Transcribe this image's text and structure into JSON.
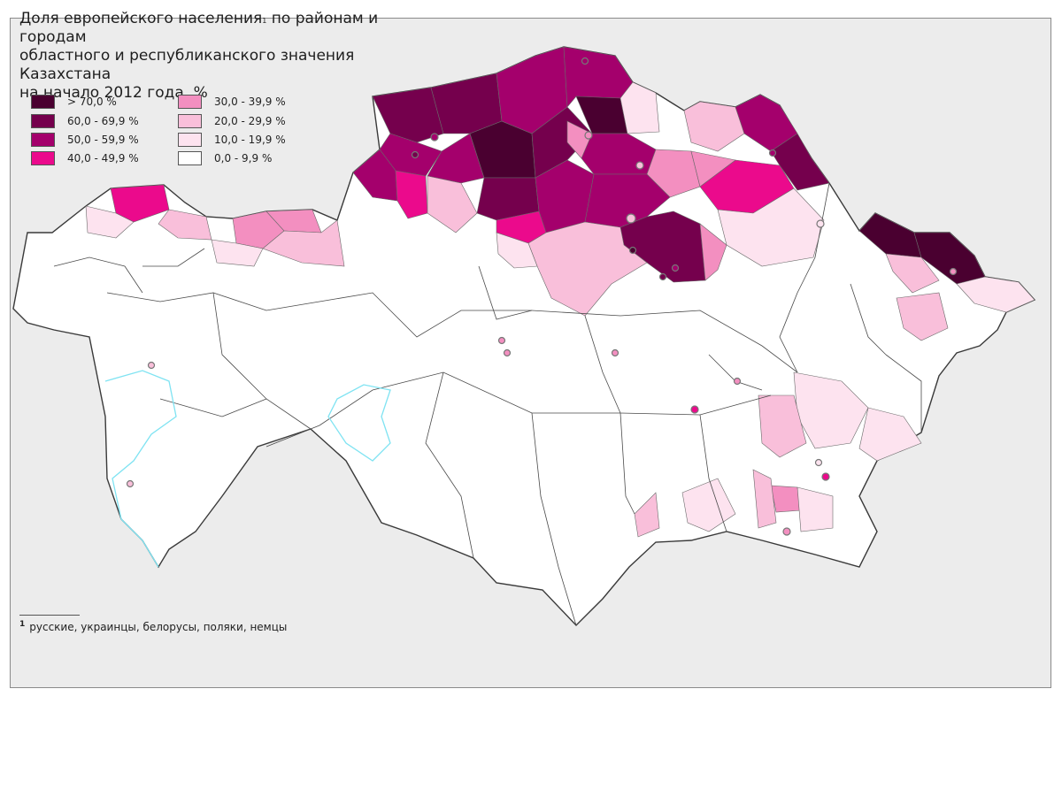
{
  "title": {
    "line1": "Доля европейского населения",
    "note_mark": "1",
    "line1_rest": " по районам и городам",
    "line2": "областного и республиканского значения Казахстана",
    "line3": "на начало 2012 года, %"
  },
  "legend": [
    {
      "label": "> 70,0 %",
      "color": "#4a0030"
    },
    {
      "label": "60,0 - 69,9 %",
      "color": "#75004d"
    },
    {
      "label": "50,0 - 59,9 %",
      "color": "#a4006c"
    },
    {
      "label": "40,0 - 49,9 %",
      "color": "#eb0a8c"
    },
    {
      "label": "30,0 - 39,9 %",
      "color": "#f38fc0"
    },
    {
      "label": "20,0 - 29,9 %",
      "color": "#f9bfda"
    },
    {
      "label": "10,0 - 19,9 %",
      "color": "#fde3ef"
    },
    {
      "label": "0,0 - 9,9 %",
      "color": "#ffffff"
    }
  ],
  "footnote": {
    "mark": "1",
    "text": "русские, украинцы, белорусы, поляки, немцы"
  },
  "colors": {
    "background": "#ececec",
    "border": "#555555",
    "water": "#7fe3f2"
  }
}
